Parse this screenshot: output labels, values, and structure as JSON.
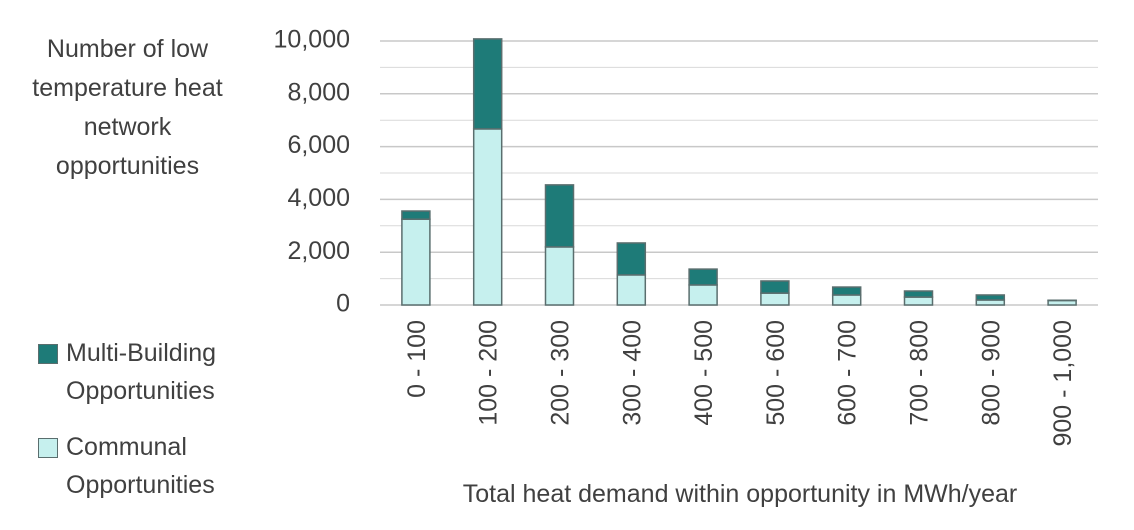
{
  "chart_data": {
    "type": "stacked_bar",
    "y_label": "Number of low temperature heat network opportunities",
    "x_label": "Total heat demand within opportunity in MWh/year",
    "categories": [
      "0 - 100",
      "100 - 200",
      "200 - 300",
      "300 - 400",
      "400 - 500",
      "500 - 600",
      "600 - 700",
      "700 - 800",
      "800 - 900",
      "900 - 1,000"
    ],
    "series": [
      {
        "name": "Multi-Building Opportunities",
        "color": "#1e7b78",
        "values": [
          310,
          3410,
          2350,
          1210,
          600,
          460,
          300,
          230,
          190,
          10
        ]
      },
      {
        "name": "Communal Opportunities",
        "color": "#c6f0ee",
        "values": [
          3250,
          6670,
          2200,
          1140,
          760,
          450,
          380,
          300,
          190,
          170
        ]
      }
    ],
    "ylim": [
      0,
      10000
    ],
    "yticks": [
      {
        "value": 0,
        "label": "0"
      },
      {
        "value": 2000,
        "label": "2,000"
      },
      {
        "value": 4000,
        "label": "4,000"
      },
      {
        "value": 6000,
        "label": "6,000"
      },
      {
        "value": 8000,
        "label": "8,000"
      },
      {
        "value": 10000,
        "label": "10,000"
      }
    ],
    "minor_yticks": [
      1000,
      3000,
      5000,
      7000,
      9000
    ],
    "grid": true
  }
}
